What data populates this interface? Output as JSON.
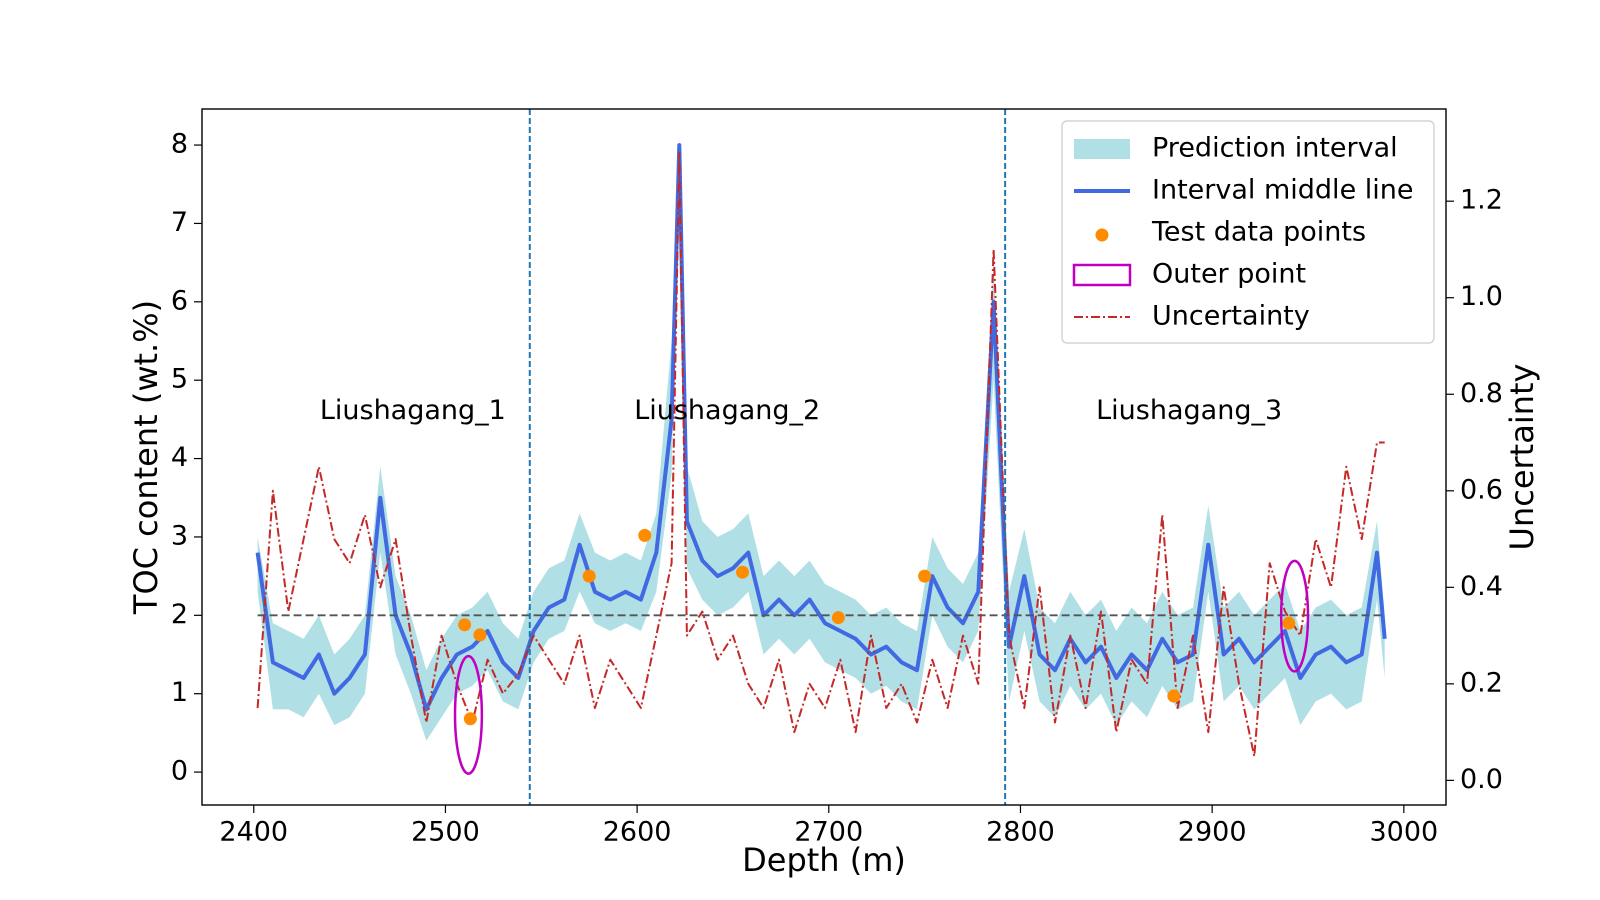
{
  "chart_data": {
    "type": "line",
    "xlabel": "Depth (m)",
    "ylabel": "TOC content (wt.%)",
    "y2label": "Uncertainty",
    "xlim": [
      2373,
      3022
    ],
    "ylim": [
      -0.42,
      8.46
    ],
    "y2lim": [
      -0.051,
      1.391
    ],
    "xticks": [
      2400,
      2500,
      2600,
      2700,
      2800,
      2900,
      3000
    ],
    "yticks": [
      0,
      1,
      2,
      3,
      4,
      5,
      6,
      7,
      8
    ],
    "y2ticks": [
      {
        "value": 0,
        "label": "0.0"
      },
      0.2,
      0.4,
      0.6,
      0.8,
      {
        "value": 1,
        "label": "1.0"
      },
      1.2
    ],
    "legend": "upper right",
    "vlines": [
      2544,
      2792
    ],
    "vline_color": "#1f77b4",
    "hline": 2,
    "hline_color": "#555555",
    "annotations": [
      {
        "text": "Liushagang_1",
        "x": 2483,
        "y": 4.6
      },
      {
        "text": "Liushagang_2",
        "x": 2647,
        "y": 4.6
      },
      {
        "text": "Liushagang_3",
        "x": 2888,
        "y": 4.6
      }
    ],
    "x": [
      2402,
      2410,
      2418,
      2426,
      2434,
      2442,
      2450,
      2458,
      2466,
      2474,
      2482,
      2490,
      2498,
      2506,
      2514,
      2522,
      2530,
      2538,
      2546,
      2554,
      2562,
      2570,
      2578,
      2586,
      2594,
      2602,
      2610,
      2618,
      2622,
      2626,
      2634,
      2642,
      2650,
      2658,
      2666,
      2674,
      2682,
      2690,
      2698,
      2706,
      2714,
      2722,
      2730,
      2738,
      2746,
      2754,
      2762,
      2770,
      2778,
      2786,
      2794,
      2802,
      2810,
      2818,
      2826,
      2834,
      2842,
      2850,
      2858,
      2866,
      2874,
      2882,
      2890,
      2898,
      2906,
      2914,
      2922,
      2930,
      2938,
      2946,
      2954,
      2962,
      2970,
      2978,
      2986,
      2990
    ],
    "series": [
      {
        "name": "Prediction interval",
        "kind": "band",
        "color": "#b0e0e6",
        "lower": [
          2.3,
          0.8,
          0.8,
          0.7,
          1.0,
          0.6,
          0.7,
          1.0,
          2.8,
          1.5,
          1.0,
          0.4,
          0.7,
          1.0,
          1.1,
          1.3,
          0.9,
          0.8,
          1.4,
          1.7,
          1.8,
          2.3,
          1.9,
          1.8,
          1.9,
          1.8,
          2.3,
          3.8,
          7.5,
          2.6,
          2.2,
          2.0,
          2.1,
          2.3,
          1.5,
          1.7,
          1.5,
          1.7,
          1.4,
          1.3,
          1.2,
          1.0,
          1.1,
          0.9,
          0.8,
          2.0,
          1.6,
          1.4,
          1.8,
          5.0,
          0.9,
          1.8,
          0.9,
          0.7,
          1.1,
          0.8,
          1.0,
          0.6,
          0.9,
          0.7,
          1.1,
          0.8,
          0.9,
          2.3,
          0.9,
          1.1,
          0.8,
          1.0,
          1.2,
          0.6,
          0.9,
          1.0,
          0.8,
          0.9,
          2.2,
          1.2
        ],
        "upper": [
          3.0,
          1.9,
          1.8,
          1.7,
          2.0,
          1.5,
          1.7,
          2.0,
          3.9,
          2.5,
          2.0,
          1.3,
          1.7,
          2.0,
          2.1,
          2.3,
          1.9,
          1.7,
          2.3,
          2.6,
          2.7,
          3.3,
          2.8,
          2.7,
          2.8,
          2.7,
          3.3,
          5.5,
          8.1,
          3.9,
          3.2,
          3.0,
          3.1,
          3.3,
          2.5,
          2.7,
          2.5,
          2.7,
          2.4,
          2.3,
          2.2,
          2.0,
          2.1,
          1.9,
          1.8,
          3.0,
          2.6,
          2.4,
          2.8,
          6.5,
          2.3,
          3.1,
          2.1,
          1.9,
          2.3,
          2.0,
          2.2,
          1.8,
          2.1,
          1.9,
          2.3,
          2.0,
          2.1,
          3.4,
          2.1,
          2.3,
          2.0,
          2.2,
          2.4,
          1.8,
          2.1,
          2.2,
          2.0,
          2.1,
          3.2,
          2.0
        ]
      },
      {
        "name": "Interval middle line",
        "kind": "line",
        "color": "#4169e1",
        "values": [
          2.8,
          1.4,
          1.3,
          1.2,
          1.5,
          1.0,
          1.2,
          1.5,
          3.5,
          2.0,
          1.5,
          0.8,
          1.2,
          1.5,
          1.6,
          1.8,
          1.4,
          1.2,
          1.8,
          2.1,
          2.2,
          2.9,
          2.3,
          2.2,
          2.3,
          2.2,
          2.8,
          4.5,
          8.0,
          3.2,
          2.7,
          2.5,
          2.6,
          2.8,
          2.0,
          2.2,
          2.0,
          2.2,
          1.9,
          1.8,
          1.7,
          1.5,
          1.6,
          1.4,
          1.3,
          2.5,
          2.1,
          1.9,
          2.3,
          6.0,
          1.6,
          2.5,
          1.5,
          1.3,
          1.7,
          1.4,
          1.6,
          1.2,
          1.5,
          1.3,
          1.7,
          1.4,
          1.5,
          2.9,
          1.5,
          1.7,
          1.4,
          1.6,
          1.8,
          1.2,
          1.5,
          1.6,
          1.4,
          1.5,
          2.8,
          1.7
        ]
      },
      {
        "name": "Test data points",
        "kind": "scatter",
        "color": "#ff8c00",
        "x": [
          2510,
          2518,
          2513,
          2575,
          2604,
          2655,
          2705,
          2750,
          2880,
          2940
        ],
        "values": [
          1.88,
          1.75,
          0.68,
          2.5,
          3.02,
          2.55,
          1.97,
          2.5,
          0.97,
          1.9
        ]
      },
      {
        "name": "Outer point",
        "kind": "ellipse",
        "color": "#c000c0",
        "x": [
          2512,
          2943
        ],
        "values": [
          0.73,
          1.99
        ],
        "width": [
          14,
          14
        ],
        "height": [
          1.5,
          1.41
        ]
      },
      {
        "name": "Uncertainty",
        "kind": "line",
        "dash": "dashdot",
        "axis": "y2",
        "color": "#c62828",
        "values": [
          0.15,
          0.6,
          0.35,
          0.5,
          0.65,
          0.5,
          0.45,
          0.55,
          0.4,
          0.5,
          0.3,
          0.12,
          0.3,
          0.2,
          0.12,
          0.25,
          0.18,
          0.22,
          0.3,
          0.25,
          0.2,
          0.3,
          0.15,
          0.25,
          0.2,
          0.15,
          0.3,
          0.45,
          1.3,
          0.3,
          0.35,
          0.25,
          0.3,
          0.2,
          0.15,
          0.25,
          0.1,
          0.2,
          0.15,
          0.25,
          0.1,
          0.3,
          0.15,
          0.2,
          0.12,
          0.25,
          0.15,
          0.3,
          0.2,
          1.1,
          0.3,
          0.15,
          0.4,
          0.12,
          0.3,
          0.15,
          0.35,
          0.1,
          0.25,
          0.2,
          0.55,
          0.15,
          0.3,
          0.1,
          0.4,
          0.2,
          0.05,
          0.45,
          0.35,
          0.3,
          0.5,
          0.4,
          0.65,
          0.5,
          0.7,
          0.7
        ]
      }
    ]
  }
}
